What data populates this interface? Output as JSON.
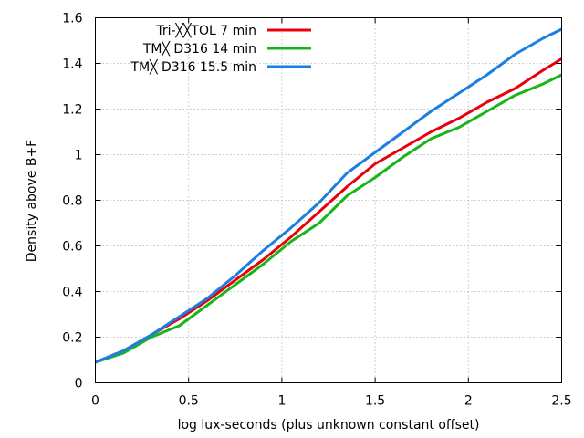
{
  "chart_data": {
    "type": "line",
    "title": "",
    "xlabel": "log lux-seconds (plus unknown constant offset)",
    "ylabel": "Density above B+F",
    "xlim": [
      0,
      2.5
    ],
    "ylim": [
      0,
      1.6
    ],
    "x_ticks": [
      "0",
      "0.5",
      "1",
      "1.5",
      "2",
      "2.5"
    ],
    "y_ticks": [
      "0",
      "0.2",
      "0.4",
      "0.6",
      "0.8",
      "1",
      "1.2",
      "1.4",
      "1.6"
    ],
    "grid": true,
    "legend_position": "top-left",
    "series": [
      {
        "name": "Tri-╳╳TOL 7 min",
        "color": "#e8000b",
        "x": [
          0,
          0.15,
          0.3,
          0.45,
          0.6,
          0.75,
          0.9,
          1.05,
          1.2,
          1.35,
          1.5,
          1.65,
          1.8,
          1.95,
          2.1,
          2.25,
          2.4,
          2.5
        ],
        "y": [
          0.09,
          0.14,
          0.21,
          0.28,
          0.36,
          0.45,
          0.54,
          0.64,
          0.75,
          0.86,
          0.96,
          1.03,
          1.1,
          1.16,
          1.23,
          1.29,
          1.37,
          1.42
        ]
      },
      {
        "name": "TM╳ D316 14 min",
        "color": "#18b418",
        "x": [
          0,
          0.15,
          0.3,
          0.45,
          0.6,
          0.75,
          0.9,
          1.05,
          1.2,
          1.35,
          1.5,
          1.65,
          1.8,
          1.95,
          2.1,
          2.25,
          2.4,
          2.5
        ],
        "y": [
          0.09,
          0.13,
          0.2,
          0.25,
          0.34,
          0.43,
          0.52,
          0.62,
          0.7,
          0.82,
          0.9,
          0.99,
          1.07,
          1.12,
          1.19,
          1.26,
          1.31,
          1.35
        ]
      },
      {
        "name": "TM╳ D316 15.5 min",
        "color": "#1a7fe0",
        "x": [
          0,
          0.15,
          0.3,
          0.45,
          0.6,
          0.75,
          0.9,
          1.05,
          1.2,
          1.35,
          1.5,
          1.65,
          1.8,
          1.95,
          2.1,
          2.25,
          2.4,
          2.5
        ],
        "y": [
          0.09,
          0.14,
          0.21,
          0.29,
          0.37,
          0.47,
          0.58,
          0.68,
          0.79,
          0.92,
          1.01,
          1.1,
          1.19,
          1.27,
          1.35,
          1.44,
          1.51,
          1.55
        ]
      }
    ]
  }
}
